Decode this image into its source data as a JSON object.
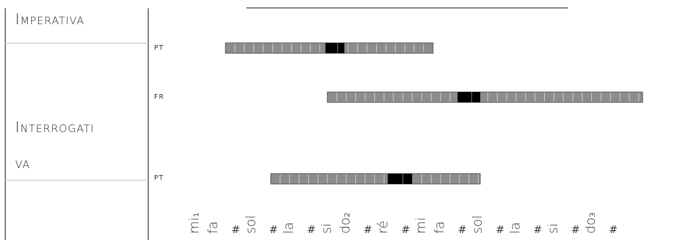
{
  "rows": [
    {
      "label_line1": "Imperativa",
      "label_line2": ""
    },
    {
      "label_line1": "Interrogati",
      "label_line2": "va"
    }
  ],
  "chart_data": {
    "type": "bar",
    "categories": [
      "mi₁",
      "fa",
      "#",
      "sol",
      "#",
      "la",
      "#",
      "si",
      "do₂",
      "#",
      "ré",
      "#",
      "mi",
      "fa",
      "#",
      "sol",
      "#",
      "la",
      "#",
      "si",
      "#",
      "do₃",
      "#"
    ],
    "series": [
      {
        "name": "PT",
        "range": [
          1.5,
          12.5
        ],
        "emphasis": [
          6.8,
          7.8
        ]
      },
      {
        "name": "FR",
        "range": [
          6.9,
          23.6
        ],
        "emphasis": [
          13.8,
          15.0
        ]
      },
      {
        "name": "PT",
        "range": [
          3.9,
          15.0
        ],
        "emphasis": [
          10.1,
          11.4
        ]
      }
    ],
    "colors": {
      "bar": "#8c8c8c",
      "emphasis": "#000000",
      "segment_border": "#cfcfcf"
    }
  }
}
